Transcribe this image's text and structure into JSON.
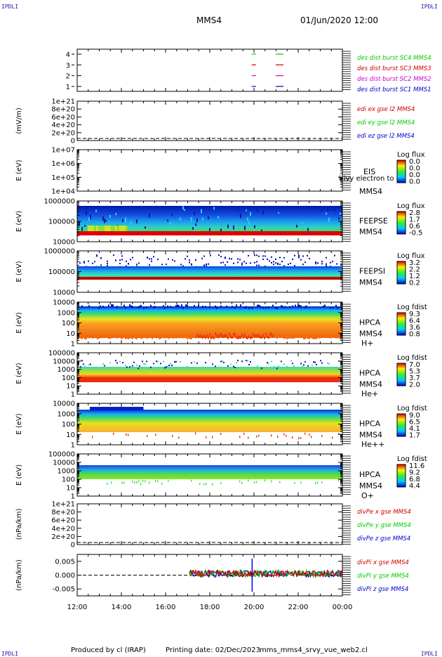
{
  "header": {
    "corner_label": "IPDLI",
    "title": "MMS4",
    "datetime": "01/Jun/2020 12:00"
  },
  "footer": {
    "produced": "Produced by cl (IRAP)",
    "printing": "Printing date: 02/Dec/2023",
    "script": "mms_mms4_srvy_vue_web2.cl"
  },
  "chart_data": [
    {
      "type": "timeline",
      "panel": "burst",
      "y_ticks": [
        "1",
        "2",
        "3",
        "4"
      ],
      "series": [
        {
          "name": "des dist burst SC1 MMS1",
          "color": "#0000cc",
          "level": 1,
          "intervals": [
            [
              "19:50",
              "20:00"
            ],
            [
              "20:55",
              "21:20"
            ]
          ]
        },
        {
          "name": "des dist burst SC2 MMS2",
          "color": "#cc00cc",
          "level": 2,
          "intervals": [
            [
              "19:50",
              "20:00"
            ],
            [
              "20:55",
              "21:20"
            ]
          ]
        },
        {
          "name": "des dist burst SC3 MMS3",
          "color": "#cc0000",
          "level": 3,
          "intervals": [
            [
              "19:50",
              "20:00"
            ],
            [
              "20:55",
              "21:20"
            ]
          ]
        },
        {
          "name": "des dist burst SC4 MMS4",
          "color": "#00cc00",
          "level": 4,
          "intervals": [
            [
              "19:50",
              "20:00"
            ],
            [
              "20:55",
              "21:20"
            ]
          ]
        }
      ]
    },
    {
      "type": "line",
      "panel": "edi",
      "ylabel": "(mV/m)",
      "y_ticks": [
        "0",
        "2e+20",
        "4e+20",
        "6e+20",
        "8e+20",
        "1e+21"
      ],
      "series": [
        {
          "name": "edi ex gse l2 MMS4",
          "color": "#cc0000"
        },
        {
          "name": "edi ey gse l2 MMS4",
          "color": "#00cc00"
        },
        {
          "name": "edi ez gse l2 MMS4",
          "color": "#0000cc"
        }
      ]
    },
    {
      "type": "heatmap",
      "panel": "eis",
      "ylabel": "E (eV)",
      "y_scale": "log",
      "y_ticks": [
        "1e+04",
        "1e+05",
        "1e+06",
        "1e+07"
      ],
      "labels": [
        "EIS",
        "MMS4"
      ],
      "overlay_text": "l(ivy electron to",
      "colorbar": {
        "title": "Log flux",
        "ticks": [
          "0.0",
          "0.0",
          "0.0",
          "0.0"
        ]
      }
    },
    {
      "type": "heatmap",
      "panel": "feepse",
      "ylabel": "E (eV)",
      "y_scale": "log",
      "y_ticks": [
        "10000",
        "100000",
        "1000000"
      ],
      "labels": [
        "FEEPSE",
        "MMS4"
      ],
      "colorbar": {
        "title": "Log flux",
        "ticks": [
          "2.8",
          "1.7",
          "0.6",
          "-0.5"
        ]
      }
    },
    {
      "type": "heatmap",
      "panel": "feepsi",
      "ylabel": "E (eV)",
      "y_scale": "log",
      "y_ticks": [
        "10000",
        "100000",
        "1000000"
      ],
      "labels": [
        "FEEPSI",
        "MMS4"
      ],
      "colorbar": {
        "title": "Log flux",
        "ticks": [
          "3.2",
          "2.2",
          "1.2",
          "0.2"
        ]
      }
    },
    {
      "type": "heatmap",
      "panel": "hpca_h",
      "ylabel": "E (eV)",
      "y_scale": "log",
      "y_ticks": [
        "1",
        "10",
        "100",
        "1000",
        "10000"
      ],
      "labels": [
        "HPCA",
        "MMS4",
        "H+"
      ],
      "colorbar": {
        "title": "Log fdist",
        "ticks": [
          "9.3",
          "6.4",
          "3.6",
          "0.8"
        ]
      }
    },
    {
      "type": "heatmap",
      "panel": "hpca_he",
      "ylabel": "E (eV)",
      "y_scale": "log",
      "y_ticks": [
        "1",
        "10",
        "100",
        "1000",
        "10000",
        "100000"
      ],
      "labels": [
        "HPCA",
        "MMS4",
        "He+"
      ],
      "colorbar": {
        "title": "Log fdist",
        "ticks": [
          "7.0",
          "5.3",
          "3.7",
          "2.0"
        ]
      }
    },
    {
      "type": "heatmap",
      "panel": "hpca_hepp",
      "ylabel": "E (eV)",
      "y_scale": "log",
      "y_ticks": [
        "1",
        "10",
        "100",
        "1000",
        "10000"
      ],
      "labels": [
        "HPCA",
        "MMS4",
        "He++"
      ],
      "colorbar": {
        "title": "Log fdist",
        "ticks": [
          "9.0",
          "6.5",
          "4.1",
          "1.7"
        ]
      }
    },
    {
      "type": "heatmap",
      "panel": "hpca_o",
      "ylabel": "E (eV)",
      "y_scale": "log",
      "y_ticks": [
        "1",
        "10",
        "100",
        "1000",
        "10000",
        "100000"
      ],
      "labels": [
        "HPCA",
        "MMS4",
        "O+"
      ],
      "colorbar": {
        "title": "Log fdist",
        "ticks": [
          "11.6",
          "9.2",
          "6.8",
          "4.4"
        ]
      }
    },
    {
      "type": "line",
      "panel": "divpe",
      "ylabel": "(nPa/km)",
      "y_ticks": [
        "0",
        "2e+20",
        "4e+20",
        "6e+20",
        "8e+20",
        "1e+21"
      ],
      "series": [
        {
          "name": "divPe x gse MMS4",
          "color": "#cc0000"
        },
        {
          "name": "divPe y gse MMS4",
          "color": "#00cc00"
        },
        {
          "name": "divPe z gse MMS4",
          "color": "#0000cc"
        }
      ]
    },
    {
      "type": "line",
      "panel": "divpi",
      "ylabel": "(nPa/km)",
      "y_ticks": [
        "-0.005",
        "0.000",
        "0.005"
      ],
      "ylim": [
        -0.0075,
        0.0075
      ],
      "series": [
        {
          "name": "divPi x gse MMS4",
          "color": "#cc0000"
        },
        {
          "name": "divPi y gse MMS4",
          "color": "#00cc00"
        },
        {
          "name": "divPi z gse MMS4",
          "color": "#0000cc"
        }
      ]
    }
  ],
  "x_axis": {
    "ticks": [
      "12:00",
      "14:00",
      "16:00",
      "18:00",
      "20:00",
      "22:00",
      "00:00"
    ]
  }
}
